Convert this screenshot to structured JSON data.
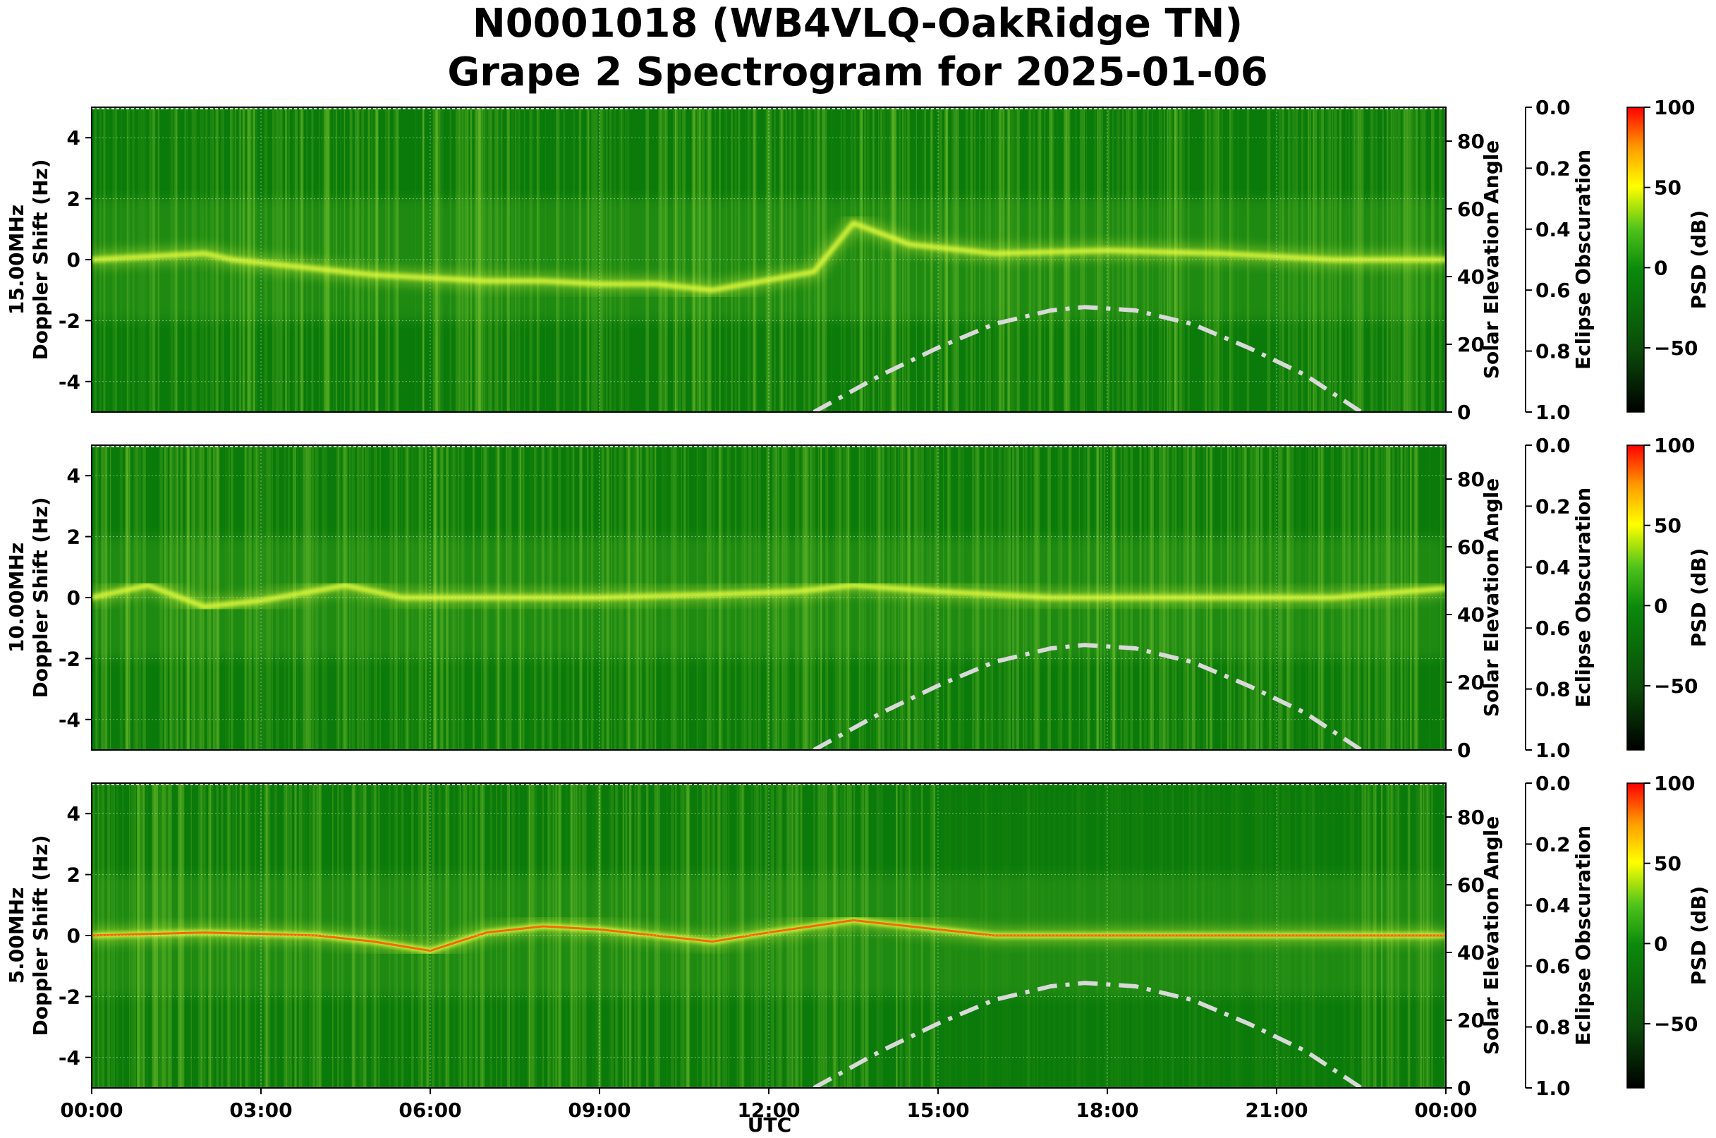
{
  "title": {
    "line1": "N0001018 (WB4VLQ-OakRidge TN)",
    "line2": "Grape 2 Spectrogram for 2025-01-06"
  },
  "xlabel": "UTC",
  "x_ticks": [
    "00:00",
    "03:00",
    "06:00",
    "09:00",
    "12:00",
    "15:00",
    "18:00",
    "21:00",
    "00:00"
  ],
  "y_ticks": [
    4,
    2,
    0,
    -2,
    -4
  ],
  "solar_ticks": [
    0,
    20,
    40,
    60,
    80
  ],
  "eclipse_ticks": [
    "0.0",
    "0.2",
    "0.4",
    "0.6",
    "0.8",
    "1.0"
  ],
  "colorbar_ticks": [
    "100",
    "50",
    "0",
    "−50"
  ],
  "right_label": "Solar Elevation Angle",
  "eclipse_label": "Eclipse Obscuration",
  "colorbar_label": "PSD (dB)",
  "y_label_sub": "Doppler Shift (Hz)",
  "colors": {
    "background": "#0a7a0a",
    "trace_yellow": "#e8ff3c",
    "trace_red": "#ff4a00",
    "solar_curve": "#d9d9d9"
  },
  "chart_data": [
    {
      "type": "heatmap",
      "panel_label": "15.00MHz",
      "ylabel": "Doppler Shift (Hz)",
      "ylim": [
        -5,
        5
      ],
      "xlim_hours": [
        0,
        24
      ],
      "solar_ylim": [
        0,
        90
      ],
      "colorbar_range_db": [
        -90,
        100
      ],
      "doppler_trace_hz": [
        {
          "utc": 0,
          "hz": 0
        },
        {
          "utc": 1,
          "hz": 0.1
        },
        {
          "utc": 2,
          "hz": 0.2
        },
        {
          "utc": 2.5,
          "hz": 0
        },
        {
          "utc": 4,
          "hz": -0.3
        },
        {
          "utc": 5,
          "hz": -0.5
        },
        {
          "utc": 6,
          "hz": -0.6
        },
        {
          "utc": 7,
          "hz": -0.7
        },
        {
          "utc": 8,
          "hz": -0.7
        },
        {
          "utc": 9,
          "hz": -0.8
        },
        {
          "utc": 10,
          "hz": -0.8
        },
        {
          "utc": 11,
          "hz": -1
        },
        {
          "utc": 12.8,
          "hz": -0.4
        },
        {
          "utc": 13.5,
          "hz": 1.2
        },
        {
          "utc": 14.5,
          "hz": 0.5
        },
        {
          "utc": 16,
          "hz": 0.2
        },
        {
          "utc": 18,
          "hz": 0.3
        },
        {
          "utc": 20,
          "hz": 0.2
        },
        {
          "utc": 22,
          "hz": 0
        },
        {
          "utc": 24,
          "hz": 0
        }
      ],
      "solar_elevation_deg": [
        {
          "utc": 12.8,
          "deg": 0
        },
        {
          "utc": 14,
          "deg": 11
        },
        {
          "utc": 15,
          "deg": 19
        },
        {
          "utc": 16,
          "deg": 26
        },
        {
          "utc": 17,
          "deg": 30
        },
        {
          "utc": 17.6,
          "deg": 31
        },
        {
          "utc": 18.5,
          "deg": 30
        },
        {
          "utc": 19.5,
          "deg": 26
        },
        {
          "utc": 20.5,
          "deg": 19
        },
        {
          "utc": 21.5,
          "deg": 11
        },
        {
          "utc": 22.5,
          "deg": 0
        }
      ]
    },
    {
      "type": "heatmap",
      "panel_label": "10.00MHz",
      "ylabel": "Doppler Shift (Hz)",
      "ylim": [
        -5,
        5
      ],
      "xlim_hours": [
        0,
        24
      ],
      "solar_ylim": [
        0,
        90
      ],
      "colorbar_range_db": [
        -90,
        100
      ],
      "doppler_trace_hz": [
        {
          "utc": 0,
          "hz": 0
        },
        {
          "utc": 1,
          "hz": 0.4
        },
        {
          "utc": 2,
          "hz": -0.3
        },
        {
          "utc": 3,
          "hz": -0.1
        },
        {
          "utc": 4.5,
          "hz": 0.4
        },
        {
          "utc": 5.5,
          "hz": 0
        },
        {
          "utc": 7,
          "hz": 0
        },
        {
          "utc": 9,
          "hz": 0
        },
        {
          "utc": 11,
          "hz": 0.1
        },
        {
          "utc": 12.5,
          "hz": 0.2
        },
        {
          "utc": 13.5,
          "hz": 0.4
        },
        {
          "utc": 15,
          "hz": 0.2
        },
        {
          "utc": 17,
          "hz": 0
        },
        {
          "utc": 20,
          "hz": 0
        },
        {
          "utc": 22,
          "hz": 0
        },
        {
          "utc": 24,
          "hz": 0.3
        }
      ],
      "solar_elevation_deg": [
        {
          "utc": 12.8,
          "deg": 0
        },
        {
          "utc": 14,
          "deg": 11
        },
        {
          "utc": 15,
          "deg": 19
        },
        {
          "utc": 16,
          "deg": 26
        },
        {
          "utc": 17,
          "deg": 30
        },
        {
          "utc": 17.6,
          "deg": 31
        },
        {
          "utc": 18.5,
          "deg": 30
        },
        {
          "utc": 19.5,
          "deg": 26
        },
        {
          "utc": 20.5,
          "deg": 19
        },
        {
          "utc": 21.5,
          "deg": 11
        },
        {
          "utc": 22.5,
          "deg": 0
        }
      ]
    },
    {
      "type": "heatmap",
      "panel_label": "5.00MHz",
      "ylabel": "Doppler Shift (Hz)",
      "ylim": [
        -5,
        5
      ],
      "xlim_hours": [
        0,
        24
      ],
      "solar_ylim": [
        0,
        90
      ],
      "colorbar_range_db": [
        -90,
        100
      ],
      "doppler_trace_hz": [
        {
          "utc": 0,
          "hz": 0
        },
        {
          "utc": 2,
          "hz": 0.1
        },
        {
          "utc": 4,
          "hz": 0
        },
        {
          "utc": 5,
          "hz": -0.2
        },
        {
          "utc": 6,
          "hz": -0.5
        },
        {
          "utc": 7,
          "hz": 0.1
        },
        {
          "utc": 8,
          "hz": 0.3
        },
        {
          "utc": 9,
          "hz": 0.2
        },
        {
          "utc": 10,
          "hz": 0
        },
        {
          "utc": 11,
          "hz": -0.2
        },
        {
          "utc": 12,
          "hz": 0.1
        },
        {
          "utc": 13.5,
          "hz": 0.5
        },
        {
          "utc": 16,
          "hz": 0
        },
        {
          "utc": 20,
          "hz": 0
        },
        {
          "utc": 24,
          "hz": 0
        }
      ],
      "solar_elevation_deg": [
        {
          "utc": 12.8,
          "deg": 0
        },
        {
          "utc": 14,
          "deg": 11
        },
        {
          "utc": 15,
          "deg": 19
        },
        {
          "utc": 16,
          "deg": 26
        },
        {
          "utc": 17,
          "deg": 30
        },
        {
          "utc": 17.6,
          "deg": 31
        },
        {
          "utc": 18.5,
          "deg": 30
        },
        {
          "utc": 19.5,
          "deg": 26
        },
        {
          "utc": 20.5,
          "deg": 19
        },
        {
          "utc": 21.5,
          "deg": 11
        },
        {
          "utc": 22.5,
          "deg": 0
        }
      ]
    }
  ]
}
